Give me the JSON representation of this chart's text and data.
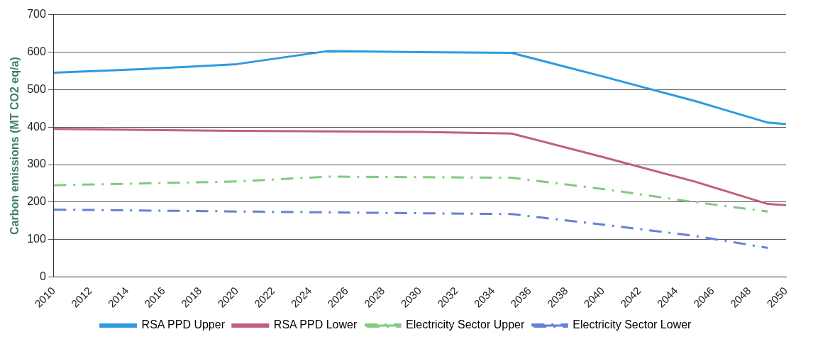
{
  "chart_data": {
    "type": "line",
    "ylabel": "Carbon emissions (MT CO2 eq/a)",
    "xlim": [
      2010,
      2050
    ],
    "xticks": [
      2010,
      2012,
      2014,
      2016,
      2018,
      2020,
      2022,
      2024,
      2026,
      2028,
      2030,
      2032,
      2034,
      2036,
      2038,
      2040,
      2042,
      2044,
      2046,
      2048,
      2050
    ],
    "ylim": [
      0,
      700
    ],
    "yticks": [
      0,
      100,
      200,
      300,
      400,
      500,
      600,
      700
    ],
    "grid": "y",
    "legend": "bottom",
    "marker": "none",
    "series": [
      {
        "name": "RSA PPD Upper",
        "color": "#2e9be0",
        "line_style": "solid",
        "x": [
          2010,
          2015,
          2020,
          2025,
          2030,
          2035,
          2040,
          2045,
          2049,
          2050
        ],
        "values": [
          545,
          555,
          568,
          603,
          600,
          598,
          535,
          470,
          412,
          408
        ]
      },
      {
        "name": "RSA PPD Lower",
        "color": "#c0607a",
        "line_style": "solid",
        "x": [
          2010,
          2020,
          2030,
          2035,
          2040,
          2045,
          2049,
          2050
        ],
        "values": [
          395,
          390,
          387,
          383,
          320,
          255,
          195,
          192
        ]
      },
      {
        "name": "Electricity Sector Upper",
        "color": "#7fcc7f",
        "line_style": "dashed",
        "x": [
          2010,
          2020,
          2025,
          2035,
          2040,
          2045,
          2049
        ],
        "values": [
          245,
          255,
          268,
          265,
          235,
          200,
          175
        ]
      },
      {
        "name": "Electricity Sector Lower",
        "color": "#6680d8",
        "line_style": "dashed",
        "x": [
          2010,
          2020,
          2035,
          2040,
          2045,
          2049
        ],
        "values": [
          180,
          175,
          168,
          140,
          110,
          78
        ]
      }
    ]
  }
}
